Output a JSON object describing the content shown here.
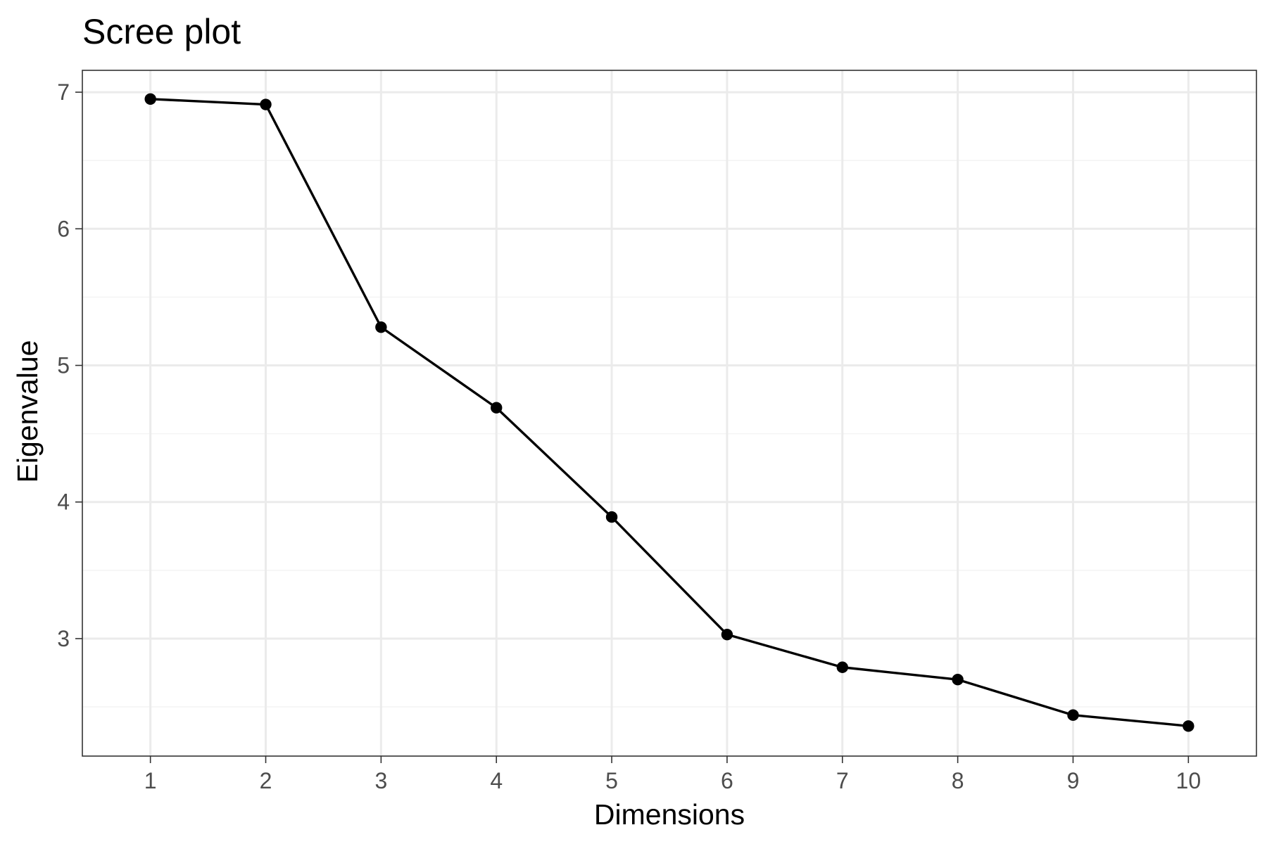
{
  "chart_data": {
    "type": "line",
    "title": "Scree plot",
    "xlabel": "Dimensions",
    "ylabel": "Eigenvalue",
    "x": [
      1,
      2,
      3,
      4,
      5,
      6,
      7,
      8,
      9,
      10
    ],
    "series": [
      {
        "values": [
          6.95,
          6.91,
          5.28,
          4.69,
          3.89,
          3.03,
          2.79,
          2.7,
          2.44,
          2.36
        ],
        "color": "#000000"
      }
    ],
    "xlim": [
      0.41,
      10.59
    ],
    "ylim": [
      2.14,
      7.16
    ],
    "x_ticks": [
      "1",
      "2",
      "3",
      "4",
      "5",
      "6",
      "7",
      "8",
      "9",
      "10"
    ],
    "y_ticks": [
      "3",
      "4",
      "5",
      "6",
      "7"
    ],
    "grid": true,
    "legend": "none",
    "theme": {
      "background": "#ffffff",
      "panel_border": "#333333",
      "major_grid": "#ebebeb",
      "minor_grid": "#f4f4f4",
      "tick_label_color": "#4d4d4d",
      "text_color": "#000000"
    }
  }
}
